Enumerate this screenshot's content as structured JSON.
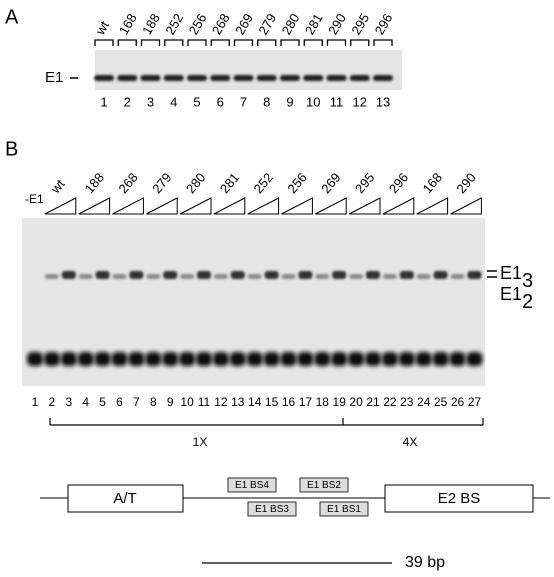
{
  "panel_a": {
    "label": "A",
    "lane_headers": [
      "wt",
      "168",
      "188",
      "252",
      "256",
      "268",
      "269",
      "279",
      "280",
      "281",
      "290",
      "295",
      "296"
    ],
    "band_label": "E1",
    "lane_numbers": [
      "1",
      "2",
      "3",
      "4",
      "5",
      "6",
      "7",
      "8",
      "9",
      "10",
      "11",
      "12",
      "13"
    ]
  },
  "panel_b": {
    "label": "B",
    "negative_label": "-E1",
    "group_headers": [
      "wt",
      "188",
      "268",
      "279",
      "280",
      "281",
      "252",
      "256",
      "269",
      "295",
      "296",
      "168",
      "290"
    ],
    "band_labels": [
      {
        "text": "E1",
        "sub": "3"
      },
      {
        "text": "E1",
        "sub": "2"
      }
    ],
    "lane_numbers": [
      "1",
      "2",
      "3",
      "4",
      "5",
      "6",
      "7",
      "8",
      "9",
      "10",
      "11",
      "12",
      "13",
      "14",
      "15",
      "16",
      "17",
      "18",
      "19",
      "20",
      "21",
      "22",
      "23",
      "24",
      "25",
      "26",
      "27"
    ],
    "brackets": [
      "1X",
      "4X"
    ]
  },
  "diagram": {
    "left_box": "A/T",
    "right_box": "E2 BS",
    "sites": [
      "E1 BS4",
      "E1 BS2",
      "E1 BS3",
      "E1 BS1"
    ],
    "scale": "39 bp"
  }
}
